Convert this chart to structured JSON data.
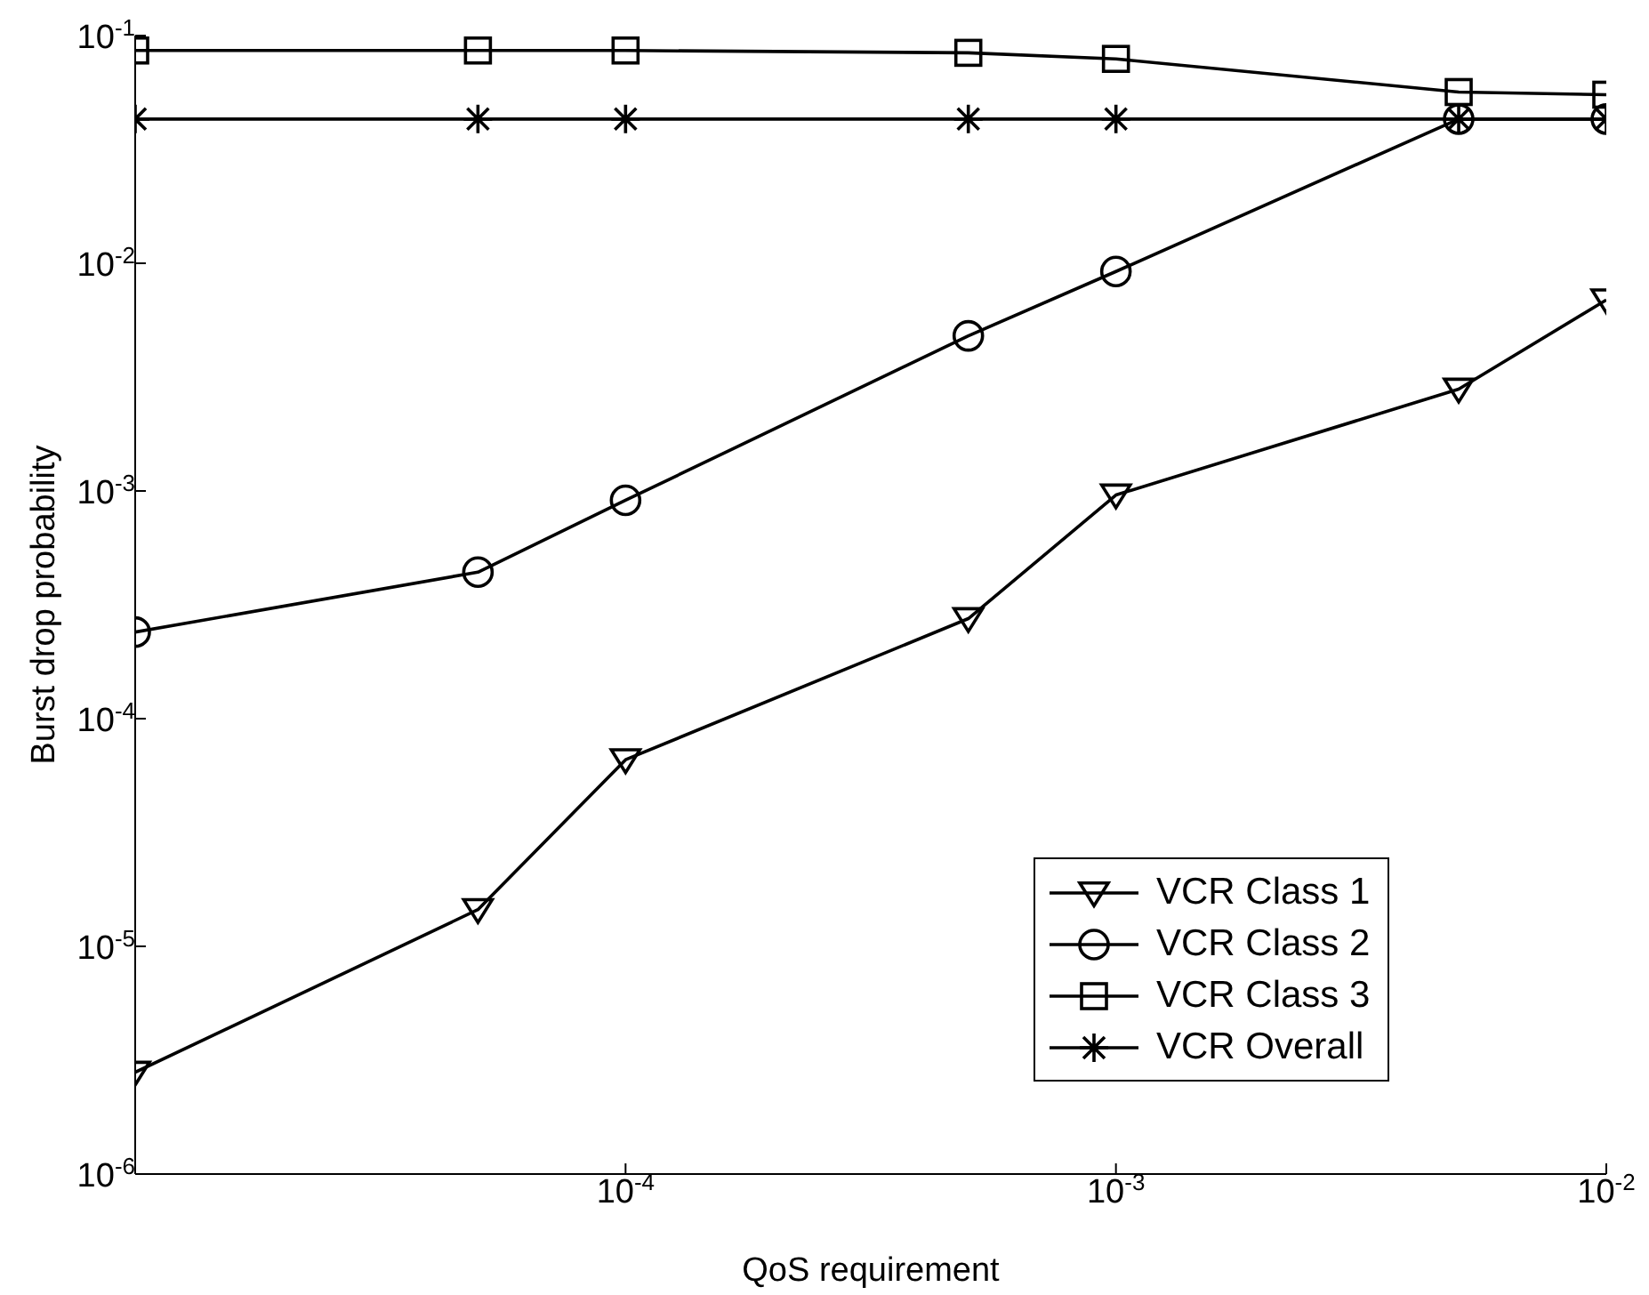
{
  "chart_data": {
    "type": "line",
    "xlabel": "QoS requirement",
    "ylabel": "Burst drop probability",
    "log": "xy",
    "x": [
      1e-05,
      5e-05,
      0.0001,
      0.0005,
      0.001,
      0.005,
      0.01
    ],
    "xlim": [
      1e-05,
      0.01
    ],
    "xticks": [
      {
        "value": 0.0001,
        "label": "10$^{-4}$"
      },
      {
        "value": 0.001,
        "label": "10$^{-3}$"
      },
      {
        "value": 0.01,
        "label": "10$^{-2}$"
      }
    ],
    "ylim": [
      1e-06,
      0.1
    ],
    "yticks": [
      {
        "value": 1e-06,
        "label": "10$^{-6}$"
      },
      {
        "value": 1e-05,
        "label": "10$^{-5}$"
      },
      {
        "value": 0.0001,
        "label": "10$^{-4}$"
      },
      {
        "value": 0.001,
        "label": "10$^{-3}$"
      },
      {
        "value": 0.01,
        "label": "10$^{-2}$"
      },
      {
        "value": 0.1,
        "label": "10$^{-1}$"
      }
    ],
    "grid": false,
    "legend": "bottom right",
    "series": [
      {
        "name": "VCR Class 1",
        "color": "#000000",
        "marker": "triangle",
        "values": [
          2.8e-06,
          1.45e-05,
          6.6e-05,
          0.000275,
          0.00096,
          0.0028,
          0.0069
        ]
      },
      {
        "name": "VCR Class 2",
        "color": "#000000",
        "marker": "circle",
        "values": [
          0.00024,
          0.00044,
          0.00091,
          0.0048,
          0.0092,
          0.043,
          0.043
        ]
      },
      {
        "name": "VCR Class 3",
        "color": "#000000",
        "marker": "square",
        "values": [
          0.086,
          0.086,
          0.086,
          0.084,
          0.079,
          0.0565,
          0.055
        ]
      },
      {
        "name": "VCR Overall",
        "color": "#000000",
        "marker": "cross",
        "values": [
          0.043,
          0.043,
          0.043,
          0.043,
          0.043,
          0.043,
          0.043
        ]
      }
    ]
  }
}
